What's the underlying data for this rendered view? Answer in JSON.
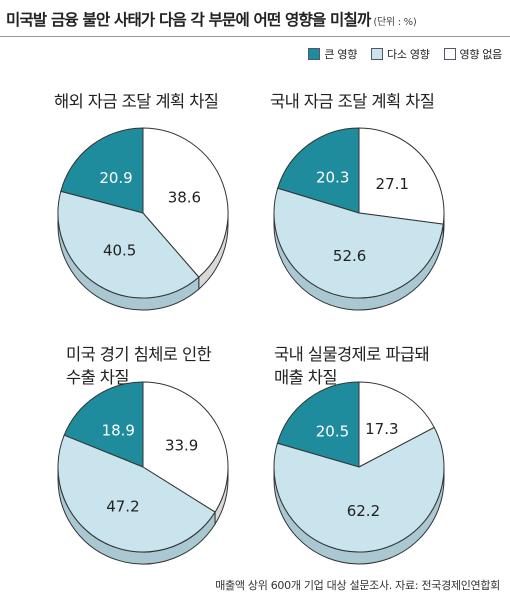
{
  "title": "미국발 금융 불안 사태가 다음 각 부문에 어떤 영향을 미칠까",
  "unit": "(단위 : %)",
  "legend": [
    {
      "label": "큰 영향",
      "color": "#1f8c9e"
    },
    {
      "label": "다소 영향",
      "color": "#c9e4ec"
    },
    {
      "label": "영향 없음",
      "color": "#ffffff"
    }
  ],
  "source": "매출액 상위 600개 기업 대상 설문조사. 자료: 전국경제인연합회",
  "chart_data": [
    {
      "type": "pie",
      "title": "해외 자금 조달 계획 차질",
      "labels": [
        "큰 영향",
        "다소 영향",
        "영향 없음"
      ],
      "values": [
        20.9,
        40.5,
        38.6
      ]
    },
    {
      "type": "pie",
      "title": "국내 자금 조달 계획 차질",
      "labels": [
        "큰 영향",
        "다소 영향",
        "영향 없음"
      ],
      "values": [
        20.3,
        52.6,
        27.1
      ]
    },
    {
      "type": "pie",
      "title": "미국 경기 침체로 인한\n수출 차질",
      "labels": [
        "큰 영향",
        "다소 영향",
        "영향 없음"
      ],
      "values": [
        18.9,
        47.2,
        33.9
      ]
    },
    {
      "type": "pie",
      "title": "국내 실물경제로 파급돼\n매출 차질",
      "labels": [
        "큰 영향",
        "다소 영향",
        "영향 없음"
      ],
      "values": [
        20.5,
        62.2,
        17.3
      ]
    }
  ]
}
